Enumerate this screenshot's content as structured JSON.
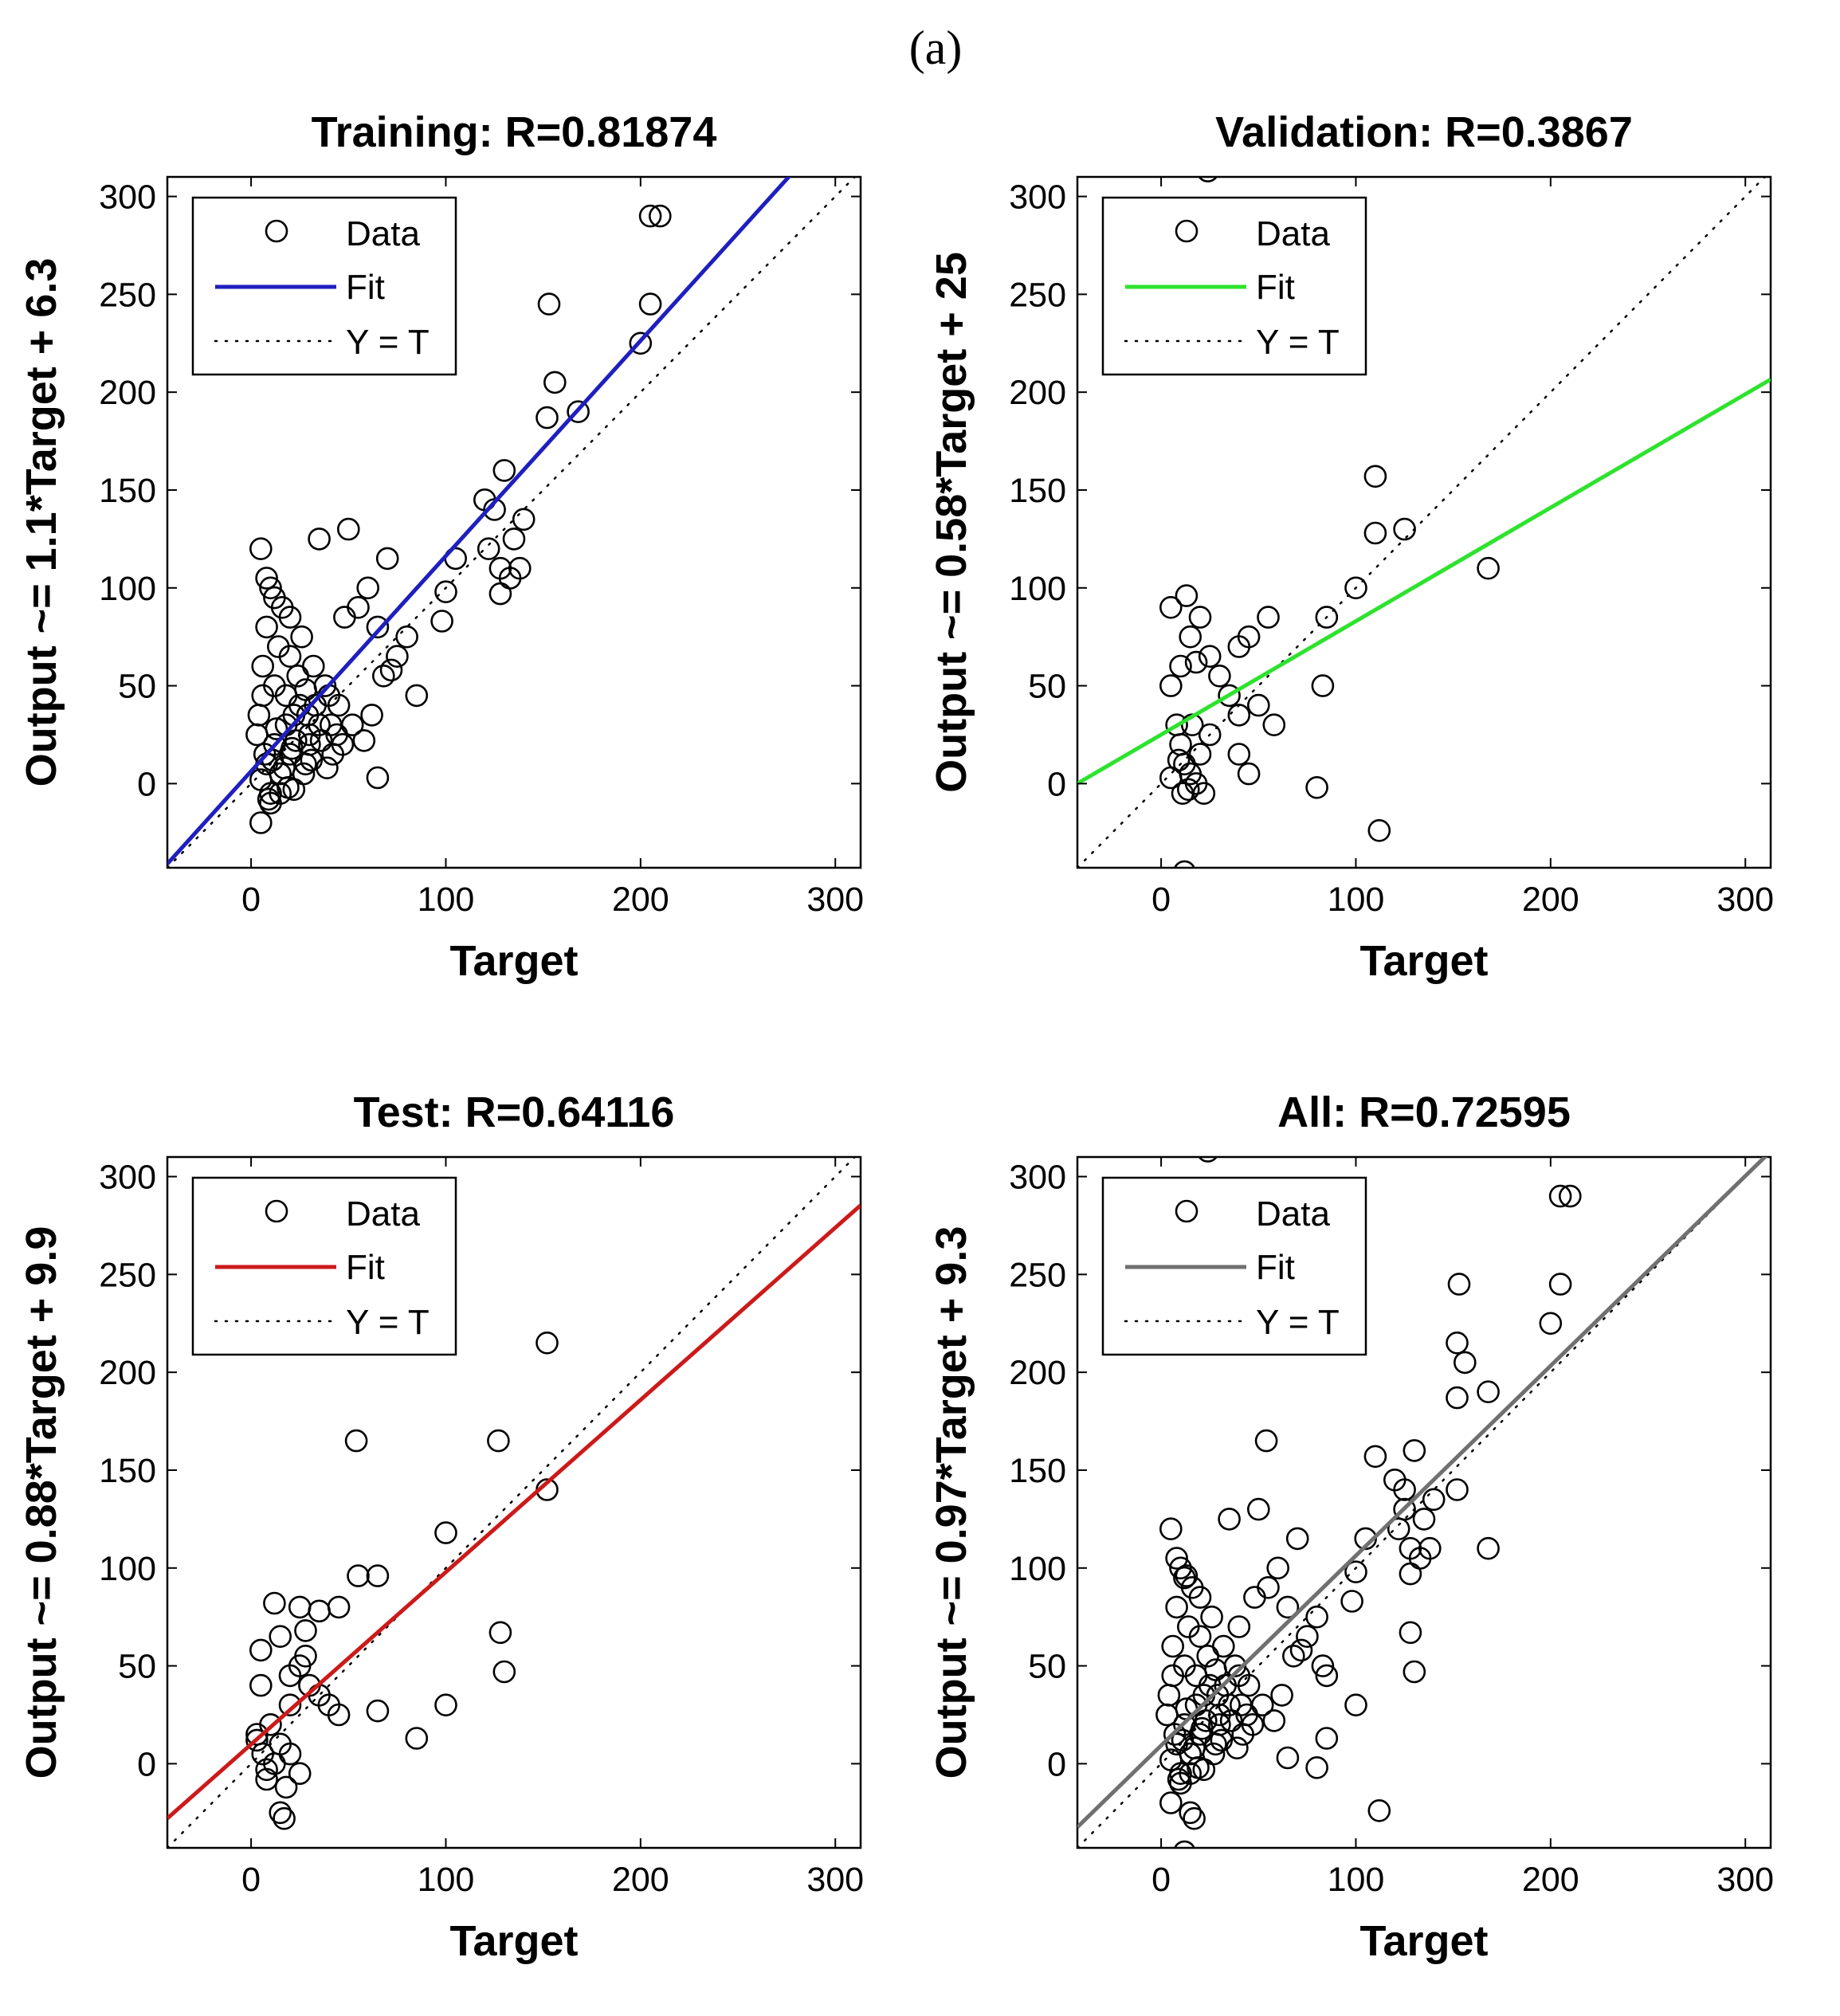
{
  "figure_label": "(a)",
  "chart_data": [
    {
      "type": "scatter",
      "title": "Training: R=0.81874",
      "xlabel": "Target",
      "ylabel": "Output ~= 1.1*Target + 6.3",
      "xlim": [
        -43,
        313
      ],
      "ylim": [
        -43,
        310
      ],
      "xticks": [
        0,
        100,
        200,
        300
      ],
      "yticks": [
        0,
        50,
        100,
        150,
        200,
        250,
        300
      ],
      "grid": false,
      "legend": {
        "position": "top-left",
        "entries": [
          "Data",
          "Fit",
          "Y = T"
        ]
      },
      "fit": {
        "slope": 1.1,
        "intercept": 6.3,
        "color": "#1f1fbf"
      },
      "points": [
        [
          5,
          2
        ],
        [
          8,
          10
        ],
        [
          10,
          -5
        ],
        [
          12,
          20
        ],
        [
          15,
          5
        ],
        [
          18,
          30
        ],
        [
          20,
          15
        ],
        [
          22,
          -3
        ],
        [
          25,
          40
        ],
        [
          28,
          10
        ],
        [
          30,
          25
        ],
        [
          6,
          60
        ],
        [
          8,
          80
        ],
        [
          10,
          100
        ],
        [
          12,
          50
        ],
        [
          14,
          70
        ],
        [
          16,
          90
        ],
        [
          18,
          45
        ],
        [
          20,
          65
        ],
        [
          22,
          35
        ],
        [
          24,
          55
        ],
        [
          26,
          75
        ],
        [
          28,
          48
        ],
        [
          30,
          20
        ],
        [
          32,
          60
        ],
        [
          35,
          30
        ],
        [
          38,
          50
        ],
        [
          40,
          45
        ],
        [
          42,
          15
        ],
        [
          45,
          40
        ],
        [
          5,
          120
        ],
        [
          8,
          105
        ],
        [
          12,
          95
        ],
        [
          20,
          85
        ],
        [
          35,
          125
        ],
        [
          50,
          130
        ],
        [
          48,
          85
        ],
        [
          55,
          90
        ],
        [
          60,
          100
        ],
        [
          65,
          80
        ],
        [
          70,
          115
        ],
        [
          75,
          65
        ],
        [
          80,
          75
        ],
        [
          85,
          45
        ],
        [
          65,
          3
        ],
        [
          5,
          -20
        ],
        [
          10,
          -10
        ],
        [
          15,
          -5
        ],
        [
          3,
          25
        ],
        [
          4,
          35
        ],
        [
          6,
          45
        ],
        [
          7,
          15
        ],
        [
          9,
          -8
        ],
        [
          11,
          12
        ],
        [
          13,
          28
        ],
        [
          17,
          8
        ],
        [
          19,
          -2
        ],
        [
          21,
          18
        ],
        [
          23,
          22
        ],
        [
          27,
          5
        ],
        [
          29,
          35
        ],
        [
          31,
          12
        ],
        [
          33,
          40
        ],
        [
          36,
          22
        ],
        [
          39,
          8
        ],
        [
          41,
          30
        ],
        [
          44,
          25
        ],
        [
          47,
          20
        ],
        [
          52,
          30
        ],
        [
          58,
          22
        ],
        [
          62,
          35
        ],
        [
          68,
          55
        ],
        [
          72,
          58
        ],
        [
          100,
          98
        ],
        [
          105,
          115
        ],
        [
          98,
          83
        ],
        [
          120,
          145
        ],
        [
          125,
          140
        ],
        [
          122,
          120
        ],
        [
          130,
          160
        ],
        [
          128,
          110
        ],
        [
          133,
          105
        ],
        [
          135,
          125
        ],
        [
          138,
          110
        ],
        [
          140,
          135
        ],
        [
          128,
          97
        ],
        [
          153,
          245
        ],
        [
          156,
          205
        ],
        [
          152,
          187
        ],
        [
          168,
          190
        ],
        [
          200,
          225
        ],
        [
          205,
          245
        ],
        [
          205,
          290
        ],
        [
          210,
          290
        ]
      ]
    },
    {
      "type": "scatter",
      "title": "Validation: R=0.3867",
      "xlabel": "Target",
      "ylabel": "Output ~= 0.58*Target + 25",
      "xlim": [
        -43,
        313
      ],
      "ylim": [
        -43,
        310
      ],
      "xticks": [
        0,
        100,
        200,
        300
      ],
      "yticks": [
        0,
        50,
        100,
        150,
        200,
        250,
        300
      ],
      "grid": false,
      "legend": {
        "position": "top-left",
        "entries": [
          "Data",
          "Fit",
          "Y = T"
        ]
      },
      "fit": {
        "slope": 0.58,
        "intercept": 25,
        "color": "#2ee22e"
      },
      "points": [
        [
          24,
          313
        ],
        [
          5,
          90
        ],
        [
          13,
          96
        ],
        [
          10,
          60
        ],
        [
          20,
          85
        ],
        [
          15,
          75
        ],
        [
          18,
          62
        ],
        [
          25,
          65
        ],
        [
          30,
          55
        ],
        [
          40,
          70
        ],
        [
          45,
          75
        ],
        [
          55,
          85
        ],
        [
          35,
          45
        ],
        [
          40,
          35
        ],
        [
          50,
          40
        ],
        [
          58,
          30
        ],
        [
          5,
          50
        ],
        [
          8,
          30
        ],
        [
          10,
          20
        ],
        [
          12,
          10
        ],
        [
          15,
          5
        ],
        [
          18,
          0
        ],
        [
          20,
          15
        ],
        [
          22,
          -5
        ],
        [
          25,
          25
        ],
        [
          14,
          -3
        ],
        [
          9,
          12
        ],
        [
          16,
          30
        ],
        [
          11,
          -5
        ],
        [
          5,
          3
        ],
        [
          40,
          15
        ],
        [
          45,
          5
        ],
        [
          80,
          -2
        ],
        [
          83,
          50
        ],
        [
          85,
          85
        ],
        [
          100,
          100
        ],
        [
          110,
          157
        ],
        [
          110,
          128
        ],
        [
          125,
          130
        ],
        [
          168,
          110
        ],
        [
          112,
          -24
        ],
        [
          12,
          -45
        ]
      ]
    },
    {
      "type": "scatter",
      "title": "Test: R=0.64116",
      "xlabel": "Target",
      "ylabel": "Output ~= 0.88*Target + 9.9",
      "xlim": [
        -43,
        313
      ],
      "ylim": [
        -43,
        310
      ],
      "xticks": [
        0,
        100,
        200,
        300
      ],
      "yticks": [
        0,
        50,
        100,
        150,
        200,
        250,
        300
      ],
      "grid": false,
      "legend": {
        "position": "top-left",
        "entries": [
          "Data",
          "Fit",
          "Y = T"
        ]
      },
      "fit": {
        "slope": 0.88,
        "intercept": 9.9,
        "color": "#cc1a1a"
      },
      "points": [
        [
          152,
          215
        ],
        [
          127,
          165
        ],
        [
          54,
          165
        ],
        [
          152,
          140
        ],
        [
          55,
          96
        ],
        [
          65,
          96
        ],
        [
          45,
          80
        ],
        [
          25,
          80
        ],
        [
          35,
          78
        ],
        [
          12,
          82
        ],
        [
          28,
          68
        ],
        [
          15,
          65
        ],
        [
          5,
          58
        ],
        [
          20,
          45
        ],
        [
          25,
          50
        ],
        [
          30,
          40
        ],
        [
          35,
          35
        ],
        [
          40,
          30
        ],
        [
          45,
          25
        ],
        [
          5,
          40
        ],
        [
          10,
          20
        ],
        [
          15,
          10
        ],
        [
          20,
          5
        ],
        [
          25,
          -5
        ],
        [
          12,
          0
        ],
        [
          8,
          -8
        ],
        [
          18,
          -12
        ],
        [
          15,
          -25
        ],
        [
          17,
          -28
        ],
        [
          3,
          15
        ],
        [
          8,
          -3
        ],
        [
          20,
          30
        ],
        [
          28,
          55
        ],
        [
          65,
          27
        ],
        [
          85,
          13
        ],
        [
          100,
          30
        ],
        [
          100,
          118
        ],
        [
          128,
          67
        ],
        [
          130,
          47
        ],
        [
          3,
          12
        ],
        [
          6,
          5
        ]
      ]
    },
    {
      "type": "scatter",
      "title": "All: R=0.72595",
      "xlabel": "Target",
      "ylabel": "Output ~= 0.97*Target + 9.3",
      "xlim": [
        -43,
        313
      ],
      "ylim": [
        -43,
        310
      ],
      "xticks": [
        0,
        100,
        200,
        300
      ],
      "yticks": [
        0,
        50,
        100,
        150,
        200,
        250,
        300
      ],
      "grid": false,
      "legend": {
        "position": "top-left",
        "entries": [
          "Data",
          "Fit",
          "Y = T"
        ]
      },
      "fit": {
        "slope": 0.97,
        "intercept": 9.3,
        "color": "#707070"
      },
      "points": [
        [
          24,
          313
        ],
        [
          5,
          2
        ],
        [
          8,
          10
        ],
        [
          10,
          -5
        ],
        [
          12,
          20
        ],
        [
          15,
          5
        ],
        [
          18,
          30
        ],
        [
          20,
          15
        ],
        [
          22,
          -3
        ],
        [
          25,
          40
        ],
        [
          28,
          10
        ],
        [
          30,
          25
        ],
        [
          6,
          60
        ],
        [
          8,
          80
        ],
        [
          10,
          100
        ],
        [
          12,
          50
        ],
        [
          14,
          70
        ],
        [
          16,
          90
        ],
        [
          18,
          45
        ],
        [
          20,
          65
        ],
        [
          22,
          35
        ],
        [
          24,
          55
        ],
        [
          26,
          75
        ],
        [
          28,
          48
        ],
        [
          30,
          20
        ],
        [
          32,
          60
        ],
        [
          35,
          30
        ],
        [
          38,
          50
        ],
        [
          40,
          45
        ],
        [
          42,
          15
        ],
        [
          45,
          40
        ],
        [
          5,
          120
        ],
        [
          8,
          105
        ],
        [
          12,
          95
        ],
        [
          20,
          85
        ],
        [
          35,
          125
        ],
        [
          50,
          130
        ],
        [
          48,
          85
        ],
        [
          55,
          90
        ],
        [
          60,
          100
        ],
        [
          65,
          80
        ],
        [
          70,
          115
        ],
        [
          75,
          65
        ],
        [
          80,
          75
        ],
        [
          85,
          45
        ],
        [
          65,
          3
        ],
        [
          5,
          -20
        ],
        [
          10,
          -10
        ],
        [
          15,
          -5
        ],
        [
          3,
          25
        ],
        [
          4,
          35
        ],
        [
          6,
          45
        ],
        [
          7,
          15
        ],
        [
          9,
          -8
        ],
        [
          11,
          12
        ],
        [
          13,
          28
        ],
        [
          17,
          8
        ],
        [
          19,
          -2
        ],
        [
          21,
          18
        ],
        [
          23,
          22
        ],
        [
          27,
          5
        ],
        [
          29,
          35
        ],
        [
          31,
          12
        ],
        [
          33,
          40
        ],
        [
          36,
          22
        ],
        [
          39,
          8
        ],
        [
          41,
          30
        ],
        [
          44,
          25
        ],
        [
          47,
          20
        ],
        [
          52,
          30
        ],
        [
          58,
          22
        ],
        [
          62,
          35
        ],
        [
          68,
          55
        ],
        [
          72,
          58
        ],
        [
          100,
          98
        ],
        [
          105,
          115
        ],
        [
          98,
          83
        ],
        [
          120,
          145
        ],
        [
          125,
          140
        ],
        [
          122,
          120
        ],
        [
          130,
          160
        ],
        [
          128,
          110
        ],
        [
          133,
          105
        ],
        [
          135,
          125
        ],
        [
          138,
          110
        ],
        [
          140,
          135
        ],
        [
          128,
          97
        ],
        [
          153,
          245
        ],
        [
          156,
          205
        ],
        [
          152,
          187
        ],
        [
          168,
          190
        ],
        [
          200,
          225
        ],
        [
          205,
          245
        ],
        [
          205,
          290
        ],
        [
          210,
          290
        ],
        [
          110,
          157
        ],
        [
          125,
          130
        ],
        [
          168,
          110
        ],
        [
          112,
          -24
        ],
        [
          12,
          -45
        ],
        [
          80,
          -2
        ],
        [
          83,
          50
        ],
        [
          54,
          165
        ],
        [
          152,
          215
        ],
        [
          152,
          140
        ],
        [
          128,
          67
        ],
        [
          130,
          47
        ],
        [
          85,
          13
        ],
        [
          100,
          30
        ],
        [
          15,
          -25
        ],
        [
          17,
          -28
        ],
        [
          13,
          96
        ],
        [
          40,
          70
        ]
      ]
    }
  ]
}
